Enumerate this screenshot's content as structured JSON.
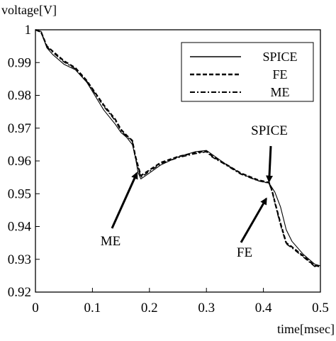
{
  "chart_data": {
    "type": "line",
    "title": "",
    "xlabel": "time[msec]",
    "ylabel": "voltage[V]",
    "xlim": [
      0,
      0.5
    ],
    "ylim": [
      0.92,
      1.0
    ],
    "x_ticks": [
      0,
      0.1,
      0.2,
      0.3,
      0.4,
      0.5
    ],
    "x_tick_labels": [
      "0",
      "0.1",
      "0.2",
      "0.3",
      "0.4",
      "0.5"
    ],
    "y_ticks": [
      0.92,
      0.93,
      0.94,
      0.95,
      0.96,
      0.97,
      0.98,
      0.99,
      1.0
    ],
    "y_tick_labels": [
      "0.92",
      "0.93",
      "0.94",
      "0.95",
      "0.96",
      "0.97",
      "0.98",
      "0.99",
      "1"
    ],
    "grid": false,
    "legend_position": "top-right",
    "series": [
      {
        "name": "SPICE",
        "style": "solid-thin",
        "x": [
          0,
          0.01,
          0.02,
          0.03,
          0.05,
          0.07,
          0.09,
          0.1,
          0.12,
          0.14,
          0.15,
          0.16,
          0.17,
          0.175,
          0.18,
          0.185,
          0.2,
          0.22,
          0.25,
          0.28,
          0.3,
          0.31,
          0.33,
          0.36,
          0.39,
          0.41,
          0.42,
          0.43,
          0.44,
          0.45,
          0.47,
          0.49,
          0.5
        ],
        "values": [
          1.0,
          0.9995,
          0.9945,
          0.9925,
          0.9895,
          0.9878,
          0.984,
          0.9812,
          0.9755,
          0.9712,
          0.9687,
          0.9672,
          0.965,
          0.9615,
          0.9565,
          0.9545,
          0.9563,
          0.9588,
          0.9612,
          0.9628,
          0.9632,
          0.962,
          0.9595,
          0.9562,
          0.954,
          0.9532,
          0.9505,
          0.946,
          0.939,
          0.9355,
          0.9315,
          0.9285,
          0.928
        ]
      },
      {
        "name": "FE",
        "style": "dashed",
        "x": [
          0,
          0.01,
          0.02,
          0.03,
          0.05,
          0.07,
          0.09,
          0.1,
          0.12,
          0.14,
          0.15,
          0.16,
          0.17,
          0.175,
          0.18,
          0.185,
          0.2,
          0.22,
          0.25,
          0.28,
          0.3,
          0.31,
          0.33,
          0.36,
          0.39,
          0.41,
          0.415,
          0.42,
          0.43,
          0.44,
          0.45,
          0.47,
          0.49,
          0.5
        ],
        "values": [
          1.0,
          0.9993,
          0.995,
          0.9935,
          0.9905,
          0.9884,
          0.9845,
          0.982,
          0.977,
          0.9727,
          0.9696,
          0.9678,
          0.9662,
          0.9617,
          0.9585,
          0.9555,
          0.9572,
          0.9595,
          0.9613,
          0.9625,
          0.963,
          0.9615,
          0.9594,
          0.9563,
          0.9542,
          0.9534,
          0.951,
          0.9475,
          0.941,
          0.935,
          0.9338,
          0.931,
          0.928,
          0.928
        ]
      },
      {
        "name": "ME",
        "style": "dash-dot",
        "x": [
          0,
          0.01,
          0.02,
          0.03,
          0.05,
          0.07,
          0.09,
          0.1,
          0.12,
          0.14,
          0.15,
          0.16,
          0.17,
          0.175,
          0.18,
          0.185,
          0.2,
          0.22,
          0.25,
          0.28,
          0.3,
          0.31,
          0.33,
          0.36,
          0.39,
          0.41,
          0.415,
          0.42,
          0.43,
          0.44,
          0.45,
          0.47,
          0.49,
          0.5
        ],
        "values": [
          1.0,
          0.9992,
          0.9948,
          0.9932,
          0.9902,
          0.9881,
          0.9843,
          0.9817,
          0.9766,
          0.9723,
          0.9692,
          0.9675,
          0.966,
          0.9612,
          0.958,
          0.955,
          0.9568,
          0.9592,
          0.961,
          0.9622,
          0.9628,
          0.9612,
          0.9592,
          0.956,
          0.954,
          0.9532,
          0.9508,
          0.9472,
          0.9405,
          0.9347,
          0.9335,
          0.9307,
          0.9278,
          0.9278
        ]
      }
    ],
    "annotations": [
      {
        "text": "ME",
        "arrow_tip": [
          0.178,
          0.9563
        ]
      },
      {
        "text": "FE",
        "arrow_tip": [
          0.405,
          0.9485
        ]
      },
      {
        "text": "SPICE",
        "arrow_tip": [
          0.41,
          0.9538
        ]
      }
    ]
  }
}
